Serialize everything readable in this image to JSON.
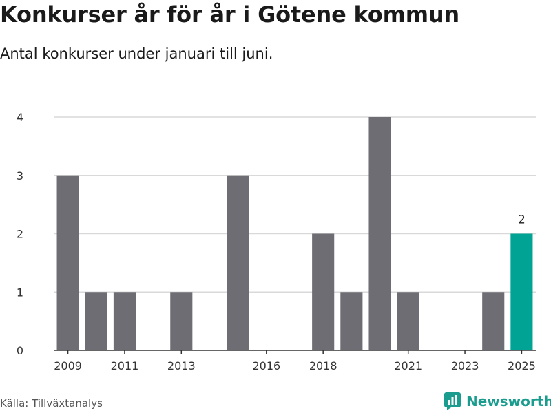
{
  "header": {
    "title": "Konkurser år för år i Götene kommun",
    "subtitle": "Antal konkurser under januari till juni."
  },
  "footer": {
    "source": "Källa: Tillväxtanalys",
    "brand": "Newsworthy",
    "brand_icon": "newsworthy-logo-icon"
  },
  "colors": {
    "bar": "#6e6d73",
    "highlight": "#00a394",
    "grid": "#d9d9d9",
    "axis": "#333333"
  },
  "chart_data": {
    "type": "bar",
    "categories": [
      "2009",
      "2010",
      "2011",
      "2012",
      "2013",
      "2014",
      "2015",
      "2016",
      "2017",
      "2018",
      "2019",
      "2020",
      "2021",
      "2022",
      "2023",
      "2024",
      "2025"
    ],
    "values": [
      3,
      1,
      1,
      0,
      1,
      0,
      3,
      0,
      0,
      2,
      1,
      4,
      1,
      0,
      0,
      1,
      2
    ],
    "x_tick_labels": [
      "2009",
      "2011",
      "2013",
      "2016",
      "2018",
      "2021",
      "2023",
      "2025"
    ],
    "y_ticks": [
      0,
      1,
      2,
      3,
      4
    ],
    "ylim": [
      0,
      4
    ],
    "highlight_category": "2025",
    "data_labels": [
      {
        "category": "2025",
        "text": "2"
      }
    ],
    "grid": true,
    "legend": "none"
  }
}
